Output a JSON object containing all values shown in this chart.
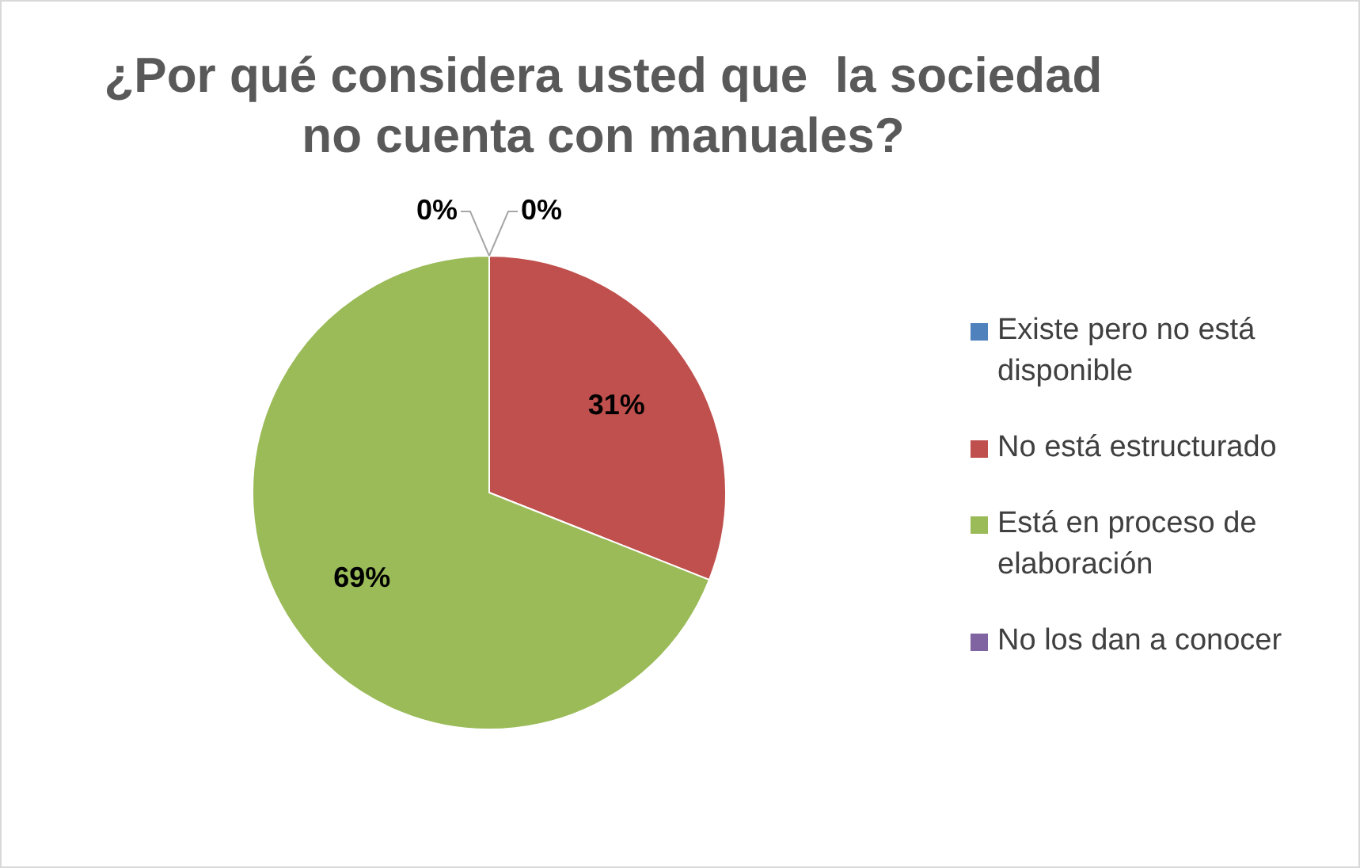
{
  "chart_data": {
    "type": "pie",
    "title": "¿Por qué considera usted que  la sociedad no cuenta con manuales?",
    "categories": [
      "Existe pero no está disponible",
      "No está estructurado",
      "Está en proceso de elaboración",
      "No los dan a conocer"
    ],
    "values": [
      0,
      31,
      69,
      0
    ],
    "colors": [
      "#4f81bd",
      "#c0504d",
      "#9bbb59",
      "#8064a2"
    ],
    "value_labels": [
      "0%",
      "31%",
      "69%",
      "0%"
    ],
    "legend": "right"
  }
}
